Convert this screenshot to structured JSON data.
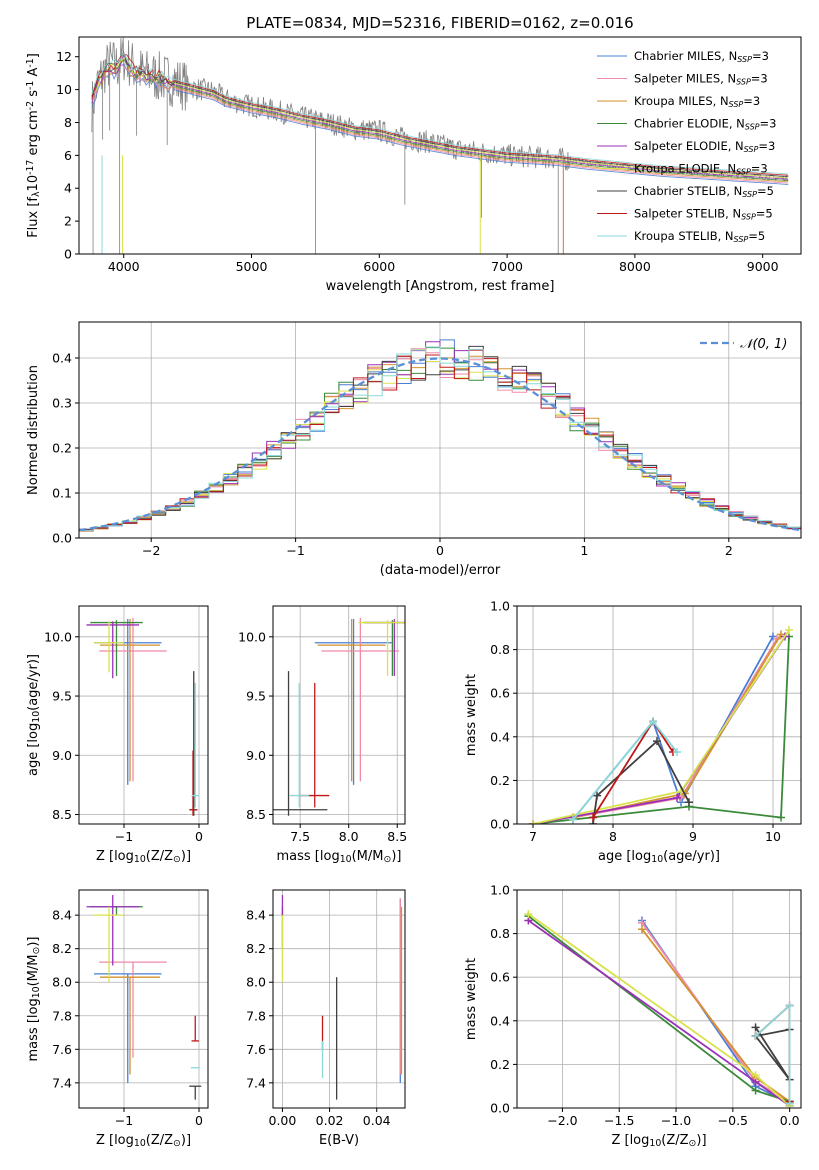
{
  "figure": {
    "title": "PLATE=0834, MJD=52316, FIBERID=0162, z=0.016"
  },
  "series_legend": [
    {
      "name": "Chabrier MILES, N$_{SSP}$=3",
      "base": "Chabrier MILES, N",
      "sub": "SSP",
      "tail": "=3",
      "color": "#4a7fd4"
    },
    {
      "name": "Salpeter MILES, N$_{SSP}$=3",
      "base": "Salpeter MILES, N",
      "sub": "SSP",
      "tail": "=3",
      "color": "#f08aa8"
    },
    {
      "name": "Kroupa MILES, N$_{SSP}$=3",
      "base": "Kroupa MILES, N",
      "sub": "SSP",
      "tail": "=3",
      "color": "#d4922e"
    },
    {
      "name": "Chabrier ELODIE, N$_{SSP}$=3",
      "base": "Chabrier ELODIE, N",
      "sub": "SSP",
      "tail": "=3",
      "color": "#3a8a3a"
    },
    {
      "name": "Salpeter ELODIE, N$_{SSP}$=3",
      "base": "Salpeter ELODIE, N",
      "sub": "SSP",
      "tail": "=3",
      "color": "#9b30b8"
    },
    {
      "name": "Kroupa ELODIE, N$_{SSP}$=3",
      "base": "Kroupa ELODIE, N",
      "sub": "SSP",
      "tail": "=3",
      "color": "#d8e24a"
    },
    {
      "name": "Chabrier STELIB, N$_{SSP}$=5",
      "base": "Chabrier STELIB, N",
      "sub": "SSP",
      "tail": "=5",
      "color": "#404040"
    },
    {
      "name": "Salpeter STELIB, N$_{SSP}$=5",
      "base": "Salpeter STELIB, N",
      "sub": "SSP",
      "tail": "=5",
      "color": "#c01818"
    },
    {
      "name": "Kroupa STELIB, N$_{SSP}$=5",
      "base": "Kroupa STELIB, N",
      "sub": "SSP",
      "tail": "=5",
      "color": "#8ad8d8"
    }
  ],
  "chart_data": [
    {
      "id": "spectrum",
      "type": "line",
      "title": "PLATE=0834, MJD=52316, FIBERID=0162, z=0.016",
      "xlabel": "wavelength [Angstrom, rest frame]",
      "ylabel": "Flux [f$_\\lambda$10$^{-17}$ erg cm$^{-2}$ s$^{-1}$ A$^{-1}$]",
      "xlim": [
        3650,
        9300
      ],
      "ylim": [
        0,
        13.2
      ],
      "xticks": [
        4000,
        5000,
        6000,
        7000,
        8000,
        9000
      ],
      "yticks": [
        0,
        2,
        4,
        6,
        8,
        10,
        12
      ],
      "grid": false,
      "legend_position": "top-right",
      "data_color": "#808080",
      "data_x": [
        3750,
        3800,
        3850,
        3900,
        3950,
        4000,
        4050,
        4100,
        4150,
        4200,
        4300,
        4400,
        4500,
        4600,
        4700,
        4800,
        4900,
        5000,
        5200,
        5400,
        5600,
        5800,
        6000,
        6200,
        6400,
        6600,
        6800,
        7000,
        7200,
        7400,
        7600,
        7800,
        8000,
        8200,
        8400,
        8600,
        8800,
        9000,
        9200
      ],
      "data_y": [
        9.0,
        10.4,
        11.2,
        11.6,
        11.4,
        12.0,
        11.6,
        11.2,
        11.0,
        10.9,
        10.7,
        10.5,
        10.2,
        10.0,
        9.9,
        9.4,
        9.2,
        9.0,
        8.7,
        8.3,
        8.0,
        7.6,
        7.5,
        7.0,
        6.8,
        6.4,
        6.2,
        6.0,
        5.9,
        5.8,
        5.6,
        5.4,
        5.3,
        5.1,
        5.0,
        4.9,
        4.8,
        4.7,
        4.6
      ],
      "model_y": [
        9.4,
        10.4,
        11.0,
        11.3,
        11.2,
        11.9,
        11.3,
        11.0,
        10.9,
        10.8,
        10.6,
        10.3,
        10.1,
        9.9,
        9.7,
        9.3,
        9.1,
        8.9,
        8.6,
        8.2,
        7.9,
        7.5,
        7.3,
        6.9,
        6.6,
        6.3,
        6.1,
        5.9,
        5.8,
        5.7,
        5.5,
        5.35,
        5.2,
        5.05,
        4.95,
        4.85,
        4.75,
        4.65,
        4.55
      ]
    },
    {
      "id": "residuals",
      "type": "histogram",
      "xlabel": "(data-model)/error",
      "ylabel": "Normed distribution",
      "xlim": [
        -2.5,
        2.5
      ],
      "ylim": [
        0,
        0.48
      ],
      "xticks": [
        -2,
        -1,
        0,
        1,
        2
      ],
      "yticks": [
        0.0,
        0.1,
        0.2,
        0.3,
        0.4
      ],
      "grid": true,
      "legend_position": "top-right",
      "legend": [
        {
          "name": "$\\mathcal{N}(0,1)$",
          "label": "𝒩(0, 1)",
          "color": "#5b8fd6",
          "style": "dashed"
        }
      ],
      "bin_width": 0.1
    },
    {
      "id": "age-vs-z",
      "type": "errorbar",
      "xlabel": "Z [log$_{10}$(Z/Z$_\\odot$)]",
      "ylabel": "age  [log$_{10}$(age/yr)]",
      "xlim": [
        -1.6,
        0.12
      ],
      "ylim": [
        8.42,
        10.26
      ],
      "xticks": [
        -1,
        0
      ],
      "yticks": [
        8.5,
        9.0,
        9.5,
        10.0
      ],
      "grid": true,
      "points": [
        {
          "series": 0,
          "x": -0.95,
          "xerr": 0.45,
          "y": 9.95,
          "yerr_lo": 1.2,
          "yerr_hi": 0.2
        },
        {
          "series": 1,
          "x": -0.88,
          "xerr": 0.45,
          "y": 9.88,
          "yerr_lo": 1.1,
          "yerr_hi": 0.28
        },
        {
          "series": 2,
          "x": -0.92,
          "xerr": 0.4,
          "y": 9.93,
          "yerr_lo": 1.15,
          "yerr_hi": 0.22
        },
        {
          "series": 3,
          "x": -1.1,
          "xerr": 0.35,
          "y": 10.12,
          "yerr_lo": 0.45,
          "yerr_hi": 0.02
        },
        {
          "series": 4,
          "x": -1.15,
          "xerr": 0.35,
          "y": 10.1,
          "yerr_lo": 0.45,
          "yerr_hi": 0.03
        },
        {
          "series": 5,
          "x": -1.2,
          "xerr": 0.2,
          "y": 9.95,
          "yerr_lo": 0.25,
          "yerr_hi": 0.18
        },
        {
          "series": 6,
          "x": -0.07,
          "xerr": 0.05,
          "y": 8.54,
          "yerr_lo": 0.05,
          "yerr_hi": 1.17
        },
        {
          "series": 7,
          "x": -0.08,
          "xerr": 0.05,
          "y": 8.54,
          "yerr_lo": 0.05,
          "yerr_hi": 0.5
        },
        {
          "series": 8,
          "x": -0.05,
          "xerr": 0.05,
          "y": 8.66,
          "yerr_lo": 0.1,
          "yerr_hi": 0.95
        }
      ]
    },
    {
      "id": "age-vs-mass",
      "type": "errorbar",
      "xlabel": "mass [log$_{10}$(M/M$_\\odot$)]",
      "ylabel": "",
      "xlim": [
        7.22,
        8.58
      ],
      "ylim": [
        8.42,
        10.26
      ],
      "xticks": [
        7.5,
        8.0,
        8.5
      ],
      "yticks": [
        8.5,
        9.0,
        9.5,
        10.0
      ],
      "grid": true,
      "points": [
        {
          "series": 0,
          "x": 8.05,
          "xerr": 0.4,
          "y": 9.95,
          "yerr_lo": 1.2,
          "yerr_hi": 0.2
        },
        {
          "series": 1,
          "x": 8.12,
          "xerr": 0.4,
          "y": 9.88,
          "yerr_lo": 1.1,
          "yerr_hi": 0.28
        },
        {
          "series": 2,
          "x": 8.03,
          "xerr": 0.35,
          "y": 9.93,
          "yerr_lo": 1.15,
          "yerr_hi": 0.22
        },
        {
          "series": 3,
          "x": 8.45,
          "xerr": 0.3,
          "y": 10.12,
          "yerr_lo": 0.45,
          "yerr_hi": 0.02
        },
        {
          "series": 4,
          "x": 8.47,
          "xerr": 0.3,
          "y": 10.12,
          "yerr_lo": 0.45,
          "yerr_hi": 0.03
        },
        {
          "series": 5,
          "x": 8.4,
          "xerr": 0.3,
          "y": 10.12,
          "yerr_lo": 0.45,
          "yerr_hi": 0.02
        },
        {
          "series": 6,
          "x": 7.38,
          "xerr": 0.4,
          "y": 8.54,
          "yerr_lo": 0.05,
          "yerr_hi": 1.17
        },
        {
          "series": 7,
          "x": 7.65,
          "xerr": 0.15,
          "y": 8.66,
          "yerr_lo": 0.1,
          "yerr_hi": 0.95
        },
        {
          "series": 8,
          "x": 7.49,
          "xerr": 0.1,
          "y": 8.66,
          "yerr_lo": 0.1,
          "yerr_hi": 0.95
        }
      ]
    },
    {
      "id": "mass-weight-vs-age",
      "type": "line",
      "xlabel": "age  [log$_{10}$(age/yr)]",
      "ylabel": "mass weight",
      "xlim": [
        6.8,
        10.35
      ],
      "ylim": [
        0,
        1.0
      ],
      "xticks": [
        7,
        8,
        9,
        10
      ],
      "yticks": [
        0.0,
        0.2,
        0.4,
        0.6,
        0.8,
        1.0
      ],
      "grid": true,
      "lines": [
        {
          "series": 0,
          "x": [
            7.5,
            8.5,
            8.85,
            10.0
          ],
          "y": [
            0.02,
            0.47,
            0.1,
            0.86
          ]
        },
        {
          "series": 1,
          "x": [
            7.5,
            8.85,
            10.05
          ],
          "y": [
            0.03,
            0.12,
            0.85
          ]
        },
        {
          "series": 2,
          "x": [
            7.5,
            8.9,
            10.1
          ],
          "y": [
            0.03,
            0.14,
            0.87
          ]
        },
        {
          "series": 3,
          "x": [
            7.0,
            8.95,
            10.1,
            10.2
          ],
          "y": [
            0.0,
            0.08,
            0.03,
            0.86
          ]
        },
        {
          "series": 4,
          "x": [
            7.0,
            8.8,
            10.15
          ],
          "y": [
            0.0,
            0.12,
            0.86
          ]
        },
        {
          "series": 5,
          "x": [
            7.0,
            8.85,
            10.2
          ],
          "y": [
            0.0,
            0.15,
            0.89
          ]
        },
        {
          "series": 6,
          "x": [
            7.75,
            7.8,
            8.55,
            8.95
          ],
          "y": [
            0.0,
            0.13,
            0.38,
            0.1
          ]
        },
        {
          "series": 7,
          "x": [
            7.75,
            8.5,
            8.75
          ],
          "y": [
            0.03,
            0.47,
            0.33
          ]
        },
        {
          "series": 8,
          "x": [
            7.5,
            8.5,
            8.8
          ],
          "y": [
            0.02,
            0.47,
            0.33
          ]
        }
      ]
    },
    {
      "id": "mass-vs-z",
      "type": "errorbar",
      "xlabel": "Z [log$_{10}$(Z/Z$_\\odot$)]",
      "ylabel": "mass [log$_{10}$(M/M$_\\odot$)]",
      "xlim": [
        -1.6,
        0.12
      ],
      "ylim": [
        7.25,
        8.55
      ],
      "xticks": [
        -1,
        0
      ],
      "yticks": [
        7.4,
        7.6,
        7.8,
        8.0,
        8.2,
        8.4
      ],
      "grid": true,
      "points": [
        {
          "series": 0,
          "x": -0.95,
          "xerr": 0.45,
          "y": 8.05,
          "yerr_lo": 0.65,
          "yerr_hi": 0.0
        },
        {
          "series": 1,
          "x": -0.88,
          "xerr": 0.45,
          "y": 8.12,
          "yerr_lo": 0.57,
          "yerr_hi": 0.0
        },
        {
          "series": 2,
          "x": -0.92,
          "xerr": 0.4,
          "y": 8.03,
          "yerr_lo": 0.58,
          "yerr_hi": 0.0
        },
        {
          "series": 3,
          "x": -1.1,
          "xerr": 0.35,
          "y": 8.45,
          "yerr_lo": 0.05,
          "yerr_hi": 0.0
        },
        {
          "series": 4,
          "x": -1.15,
          "xerr": 0.35,
          "y": 8.45,
          "yerr_lo": 0.35,
          "yerr_hi": 0.07
        },
        {
          "series": 5,
          "x": -1.2,
          "xerr": 0.2,
          "y": 8.4,
          "yerr_lo": 0.4,
          "yerr_hi": 0.05
        },
        {
          "series": 6,
          "x": -0.05,
          "xerr": 0.08,
          "y": 7.38,
          "yerr_lo": 0.08,
          "yerr_hi": 0.0
        },
        {
          "series": 7,
          "x": -0.05,
          "xerr": 0.05,
          "y": 7.65,
          "yerr_lo": 0.0,
          "yerr_hi": 0.15
        },
        {
          "series": 8,
          "x": -0.05,
          "xerr": 0.06,
          "y": 7.49,
          "yerr_lo": 0.0,
          "yerr_hi": 0.0
        }
      ]
    },
    {
      "id": "mass-vs-ebv",
      "type": "errorbar",
      "xlabel": "E(B-V)",
      "ylabel": "",
      "xlim": [
        -0.004,
        0.052
      ],
      "ylim": [
        7.25,
        8.55
      ],
      "xticks": [
        0.0,
        0.02,
        0.04
      ],
      "yticks": [
        7.4,
        7.6,
        7.8,
        8.0,
        8.2,
        8.4
      ],
      "grid": true,
      "points": [
        {
          "series": 0,
          "x": 0.05,
          "y": 7.9,
          "yerr_lo": 0.5,
          "yerr_hi": 0.6
        },
        {
          "series": 1,
          "x": 0.05,
          "y": 7.95,
          "yerr_lo": 0.5,
          "yerr_hi": 0.55
        },
        {
          "series": 2,
          "x": 0.0505,
          "y": 7.9,
          "yerr_lo": 0.45,
          "yerr_hi": 0.55
        },
        {
          "series": 3,
          "x": 0.0,
          "y": 8.35,
          "yerr_lo": 0.15,
          "yerr_hi": 0.1
        },
        {
          "series": 4,
          "x": 0.0,
          "y": 8.45,
          "yerr_lo": 0.05,
          "yerr_hi": 0.07
        },
        {
          "series": 5,
          "x": 0.0,
          "y": 8.2,
          "yerr_lo": 0.2,
          "yerr_hi": 0.2
        },
        {
          "series": 6,
          "x": 0.023,
          "y": 7.65,
          "yerr_lo": 0.35,
          "yerr_hi": 0.38
        },
        {
          "series": 7,
          "x": 0.017,
          "y": 7.7,
          "yerr_lo": 0.1,
          "yerr_hi": 0.1
        },
        {
          "series": 8,
          "x": 0.017,
          "y": 7.55,
          "yerr_lo": 0.12,
          "yerr_hi": 0.1
        }
      ]
    },
    {
      "id": "mass-weight-vs-z",
      "type": "line",
      "xlabel": "Z [log$_{10}$(Z/Z$_\\odot$)]",
      "ylabel": "mass weight",
      "xlim": [
        -2.4,
        0.1
      ],
      "ylim": [
        0,
        1.0
      ],
      "xticks": [
        -2.0,
        -1.5,
        -1.0,
        -0.5,
        0.0
      ],
      "yticks": [
        0.0,
        0.2,
        0.4,
        0.6,
        0.8,
        1.0
      ],
      "grid": true,
      "lines": [
        {
          "series": 0,
          "x": [
            -1.3,
            -0.3,
            0.0
          ],
          "y": [
            0.86,
            0.1,
            0.02
          ]
        },
        {
          "series": 1,
          "x": [
            -1.3,
            -0.3,
            0.0
          ],
          "y": [
            0.85,
            0.12,
            0.03
          ]
        },
        {
          "series": 2,
          "x": [
            -1.3,
            -0.3,
            0.0
          ],
          "y": [
            0.82,
            0.14,
            0.03
          ]
        },
        {
          "series": 3,
          "x": [
            -2.3,
            -0.3,
            0.0
          ],
          "y": [
            0.88,
            0.08,
            0.03
          ]
        },
        {
          "series": 4,
          "x": [
            -2.3,
            -0.3,
            0.0
          ],
          "y": [
            0.86,
            0.12,
            0.01
          ]
        },
        {
          "series": 5,
          "x": [
            -2.3,
            -0.3,
            0.0
          ],
          "y": [
            0.89,
            0.15,
            0.01
          ]
        },
        {
          "series": 6,
          "x": [
            -0.3,
            0.0,
            -0.3,
            0.0
          ],
          "y": [
            0.37,
            0.13,
            0.33,
            0.36
          ]
        },
        {
          "series": 7,
          "x": [
            -0.3,
            0.0,
            0.0
          ],
          "y": [
            0.33,
            0.47,
            0.03
          ]
        },
        {
          "series": 8,
          "x": [
            -0.3,
            0.0,
            0.0
          ],
          "y": [
            0.33,
            0.47,
            0.02
          ]
        }
      ]
    }
  ]
}
